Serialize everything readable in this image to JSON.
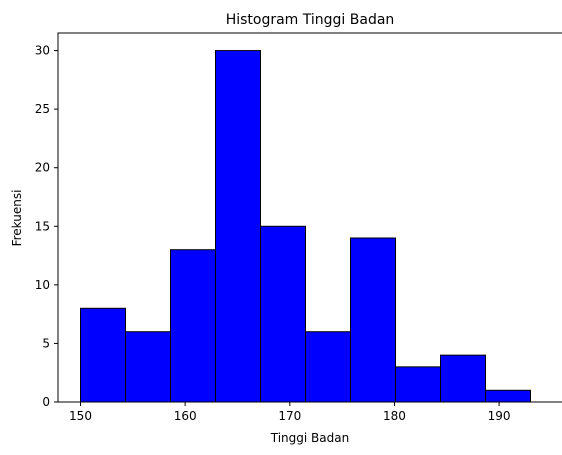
{
  "chart_data": {
    "type": "bar",
    "title": "Histogram Tinggi Badan",
    "xlabel": "Tinggi Badan",
    "ylabel": "Frekuensi",
    "bins": [
      {
        "start": 150.0,
        "end": 154.3,
        "count": 8
      },
      {
        "start": 154.3,
        "end": 158.6,
        "count": 6
      },
      {
        "start": 158.6,
        "end": 162.9,
        "count": 13
      },
      {
        "start": 162.9,
        "end": 167.2,
        "count": 30
      },
      {
        "start": 167.2,
        "end": 171.5,
        "count": 15
      },
      {
        "start": 171.5,
        "end": 175.8,
        "count": 6
      },
      {
        "start": 175.8,
        "end": 180.1,
        "count": 14
      },
      {
        "start": 180.1,
        "end": 184.4,
        "count": 3
      },
      {
        "start": 184.4,
        "end": 188.7,
        "count": 4
      },
      {
        "start": 188.7,
        "end": 193.0,
        "count": 1
      }
    ],
    "xlim": [
      147.85,
      195.15
    ],
    "ylim": [
      0,
      31.5
    ],
    "xticks": [
      150,
      160,
      170,
      180,
      190
    ],
    "yticks": [
      0,
      5,
      10,
      15,
      20,
      25,
      30
    ],
    "bar_color": "#0000ff",
    "edge_color": "#000000",
    "grid": false,
    "legend": "none"
  }
}
